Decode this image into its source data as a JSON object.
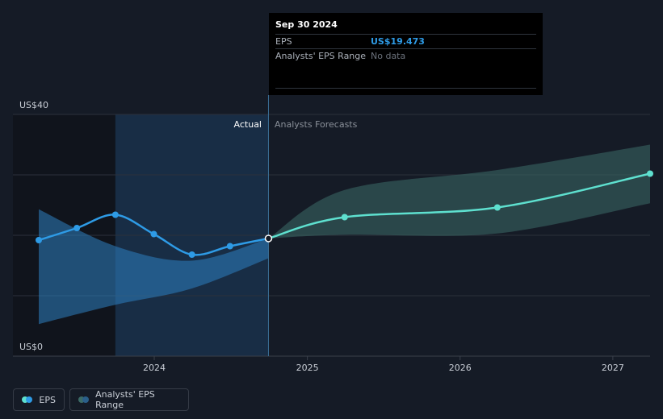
{
  "chart_data": {
    "type": "line",
    "y_axis": {
      "min": 0,
      "max": 40,
      "tick_labels": [
        "US$40",
        "US$0"
      ],
      "gridlines": [
        0,
        10,
        20,
        30,
        40
      ]
    },
    "x_axis": {
      "tick_labels": [
        "2024",
        "2025",
        "2026",
        "2027"
      ],
      "range": [
        "2023-03-31",
        "2027-03-31"
      ]
    },
    "section_labels": {
      "actual": "Actual",
      "forecast": "Analysts Forecasts"
    },
    "eps_actual": {
      "name": "EPS",
      "color": "#2e9be6",
      "points": [
        {
          "x": "2023-03-31",
          "y": 19.2
        },
        {
          "x": "2023-06-30",
          "y": 21.2
        },
        {
          "x": "2023-09-30",
          "y": 23.4
        },
        {
          "x": "2023-12-31",
          "y": 20.2
        },
        {
          "x": "2024-03-31",
          "y": 16.8
        },
        {
          "x": "2024-06-30",
          "y": 18.2
        },
        {
          "x": "2024-09-30",
          "y": 19.473
        }
      ]
    },
    "eps_actual_range": {
      "color": "#2e9be6",
      "points": [
        {
          "x": "2023-03-31",
          "high": 24.3,
          "low": 5.3
        },
        {
          "x": "2023-09-30",
          "high": 18.2,
          "low": 8.5
        },
        {
          "x": "2024-03-31",
          "high": 15.8,
          "low": 11.2
        },
        {
          "x": "2024-09-30",
          "high": 19.473,
          "low": 16.2
        }
      ]
    },
    "eps_forecast": {
      "name": "EPS",
      "color": "#5ee0cf",
      "points": [
        {
          "x": "2024-09-30",
          "y": 19.473
        },
        {
          "x": "2025-03-31",
          "y": 23.0
        },
        {
          "x": "2026-03-31",
          "y": 24.6
        },
        {
          "x": "2027-03-31",
          "y": 30.2
        }
      ]
    },
    "eps_forecast_range": {
      "name": "Analysts' EPS Range",
      "color": "#3c6b67",
      "points": [
        {
          "x": "2024-09-30",
          "high": 19.473,
          "low": 19.473
        },
        {
          "x": "2025-03-31",
          "high": 27.5,
          "low": 20.1
        },
        {
          "x": "2026-03-31",
          "high": 30.8,
          "low": 20.3
        },
        {
          "x": "2027-03-31",
          "high": 35.0,
          "low": 25.3
        }
      ]
    },
    "highlight": {
      "start": "2023-09-30",
      "end": "2024-09-30"
    }
  },
  "tooltip": {
    "date": "Sep 30 2024",
    "eps_label": "EPS",
    "eps_value": "US$19.473",
    "range_label": "Analysts' EPS Range",
    "range_value": "No data"
  },
  "legend": {
    "eps_label": "EPS",
    "eps_colors": [
      "#5ee0cf",
      "#2e9be6"
    ],
    "range_label": "Analysts' EPS Range",
    "range_colors": [
      "#3c6b67",
      "#2a5f8a"
    ]
  }
}
